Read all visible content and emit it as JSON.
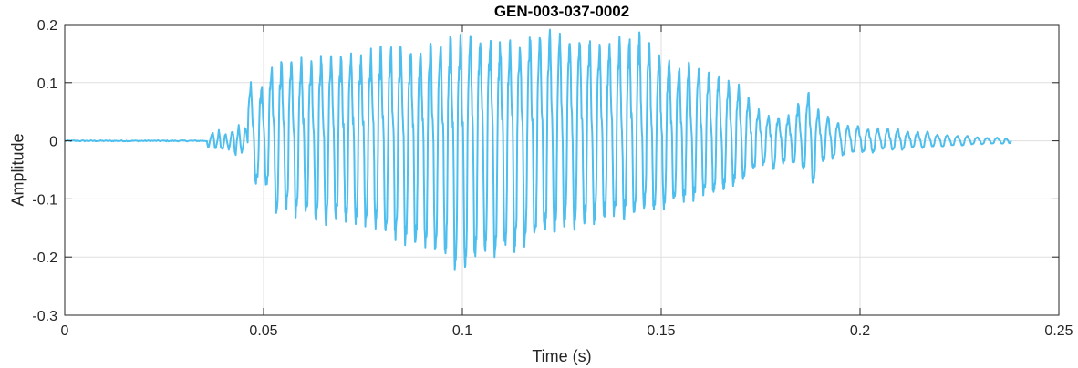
{
  "chart_data": {
    "type": "line",
    "title": "GEN-003-037-0002",
    "xlabel": "Time (s)",
    "ylabel": "Amplitude",
    "xlim": [
      0,
      0.25
    ],
    "ylim": [
      -0.3,
      0.2
    ],
    "xticks": [
      0,
      0.05,
      0.1,
      0.15,
      0.2,
      0.25
    ],
    "xtick_labels": [
      "0",
      "0.05",
      "0.1",
      "0.15",
      "0.2",
      "0.25"
    ],
    "yticks": [
      -0.3,
      -0.2,
      -0.1,
      0,
      0.1,
      0.2
    ],
    "ytick_labels": [
      "-0.3",
      "-0.2",
      "-0.1",
      "0",
      "0.1",
      "0.2"
    ],
    "grid": true,
    "series": [
      {
        "color": "#4dbeee",
        "description": "oscillating waveform, near zero until ~0.036 s, ~77 cycles between 0.046 s and 0.238 s",
        "x_start": 0,
        "x_end": 0.238,
        "cycle_start_times": [
          0.046,
          0.0488,
          0.0513,
          0.0538,
          0.0563,
          0.0588,
          0.0613,
          0.0638,
          0.0663,
          0.0688,
          0.0713,
          0.0738,
          0.0763,
          0.0788,
          0.0813,
          0.0838,
          0.0863,
          0.0888,
          0.0913,
          0.0938,
          0.0963,
          0.0988,
          0.1013,
          0.1038,
          0.1063,
          0.1088,
          0.1113,
          0.1138,
          0.1163,
          0.1188,
          0.1213,
          0.1238,
          0.1263,
          0.1288,
          0.1313,
          0.1338,
          0.1363,
          0.1388,
          0.1413,
          0.1438,
          0.1463,
          0.1488,
          0.1513,
          0.1538,
          0.1563,
          0.1588,
          0.1613,
          0.1638,
          0.1663,
          0.1688,
          0.1713,
          0.1738,
          0.1763,
          0.1788,
          0.1813,
          0.1838,
          0.1863,
          0.1888,
          0.1913,
          0.1938,
          0.1963,
          0.1988,
          0.2013,
          0.2038,
          0.2063,
          0.2088,
          0.2113,
          0.2138,
          0.2163,
          0.2188,
          0.2213,
          0.2238,
          0.2263,
          0.2288,
          0.2313,
          0.2338,
          0.2363
        ],
        "cycle_peaks": [
          0.095,
          0.09,
          0.12,
          0.13,
          0.13,
          0.13,
          0.13,
          0.14,
          0.14,
          0.14,
          0.14,
          0.14,
          0.145,
          0.15,
          0.15,
          0.15,
          0.15,
          0.15,
          0.155,
          0.16,
          0.17,
          0.175,
          0.175,
          0.17,
          0.165,
          0.16,
          0.155,
          0.16,
          0.175,
          0.175,
          0.18,
          0.175,
          0.17,
          0.17,
          0.165,
          0.16,
          0.16,
          0.165,
          0.17,
          0.175,
          0.16,
          0.14,
          0.135,
          0.12,
          0.13,
          0.12,
          0.115,
          0.11,
          0.1,
          0.09,
          0.07,
          0.05,
          0.04,
          0.04,
          0.04,
          0.06,
          0.08,
          0.05,
          0.04,
          0.03,
          0.025,
          0.025,
          0.02,
          0.02,
          0.02,
          0.02,
          0.015,
          0.015,
          0.015,
          0.01,
          0.01,
          0.008,
          0.008,
          0.006,
          0.005,
          0.005,
          0.004
        ],
        "cycle_troughs": [
          -0.075,
          -0.08,
          -0.125,
          -0.12,
          -0.13,
          -0.13,
          -0.14,
          -0.145,
          -0.14,
          -0.14,
          -0.14,
          -0.145,
          -0.15,
          -0.16,
          -0.17,
          -0.18,
          -0.18,
          -0.185,
          -0.19,
          -0.2,
          -0.22,
          -0.22,
          -0.21,
          -0.2,
          -0.2,
          -0.19,
          -0.19,
          -0.18,
          -0.17,
          -0.16,
          -0.16,
          -0.15,
          -0.15,
          -0.145,
          -0.14,
          -0.135,
          -0.13,
          -0.13,
          -0.125,
          -0.12,
          -0.12,
          -0.115,
          -0.11,
          -0.105,
          -0.1,
          -0.095,
          -0.09,
          -0.085,
          -0.075,
          -0.065,
          -0.05,
          -0.04,
          -0.05,
          -0.04,
          -0.04,
          -0.05,
          -0.07,
          -0.035,
          -0.03,
          -0.025,
          -0.02,
          -0.02,
          -0.02,
          -0.015,
          -0.015,
          -0.015,
          -0.012,
          -0.012,
          -0.01,
          -0.01,
          -0.008,
          -0.008,
          -0.006,
          -0.006,
          -0.005,
          -0.005,
          -0.004
        ]
      }
    ]
  }
}
